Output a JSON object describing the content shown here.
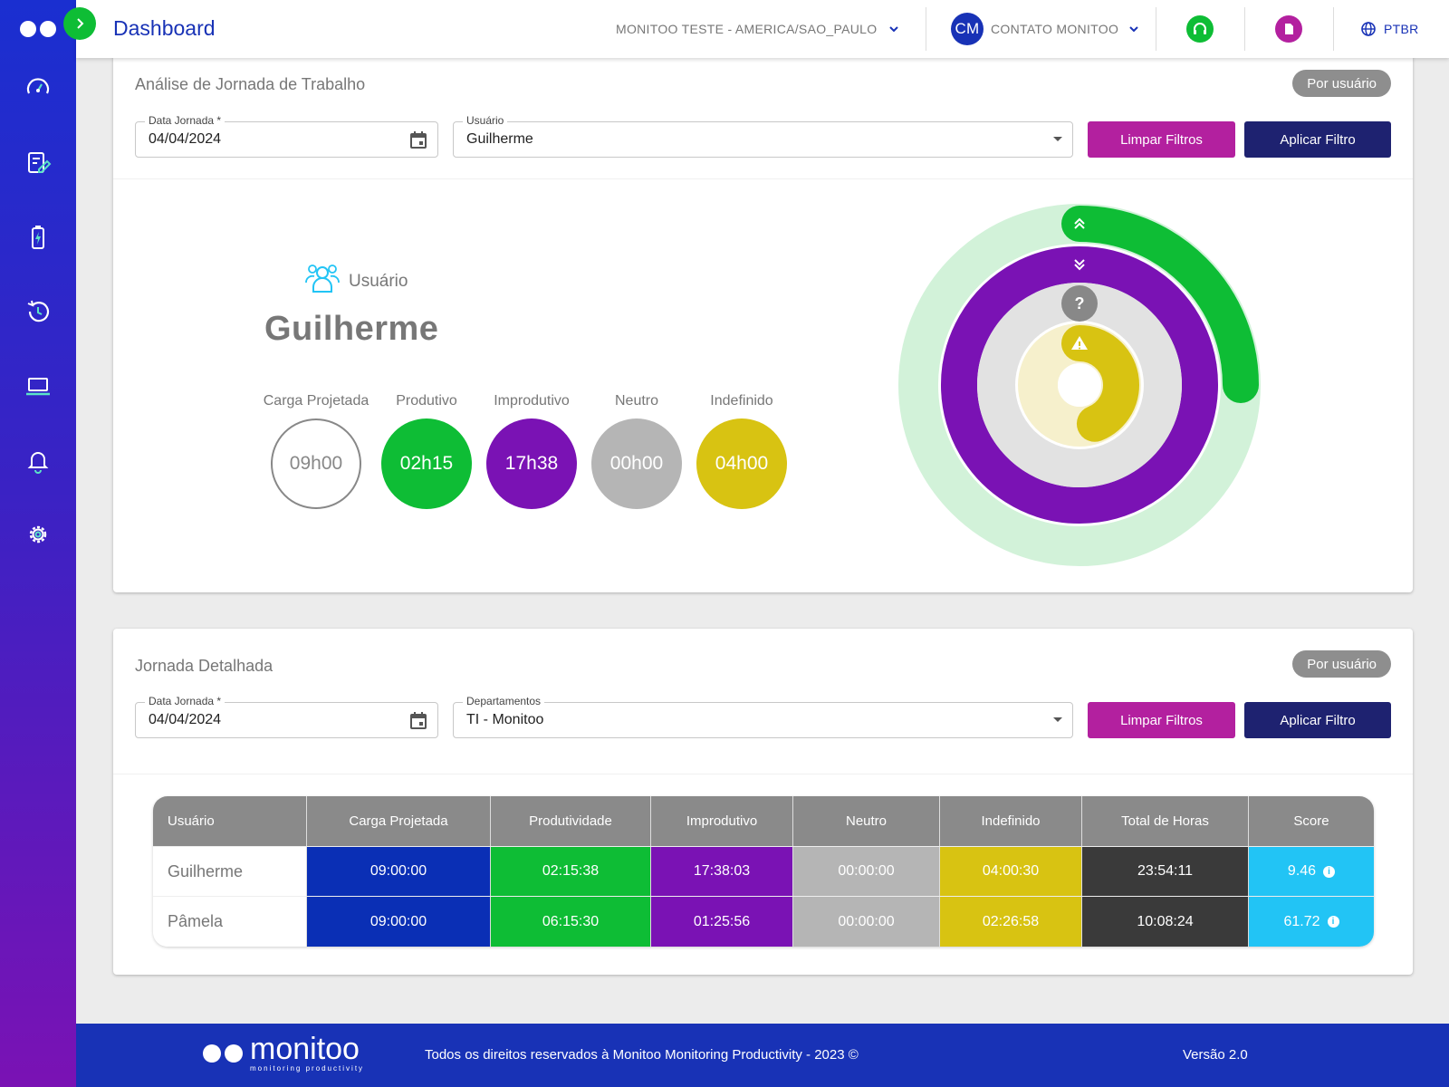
{
  "header": {
    "title": "Dashboard",
    "company": "MONITOO TESTE - AMERICA/SAO_PAULO",
    "avatar_initials": "CM",
    "account": "CONTATO MONITOO",
    "language": "PTBR"
  },
  "sidebar": {
    "items": [
      {
        "icon": "speedometer-icon"
      },
      {
        "icon": "report-edit-icon"
      },
      {
        "icon": "battery-charging-icon"
      },
      {
        "icon": "history-clock-icon"
      },
      {
        "icon": "laptop-icon"
      },
      {
        "icon": "bell-icon"
      },
      {
        "icon": "gear-icon"
      }
    ]
  },
  "analysis": {
    "title": "Análise de Jornada de Trabalho",
    "pill": "Por usuário",
    "date_label": "Data Jornada *",
    "date_value": "04/04/2024",
    "user_label": "Usuário",
    "user_value": "Guilherme",
    "clear_button": "Limpar Filtros",
    "apply_button": "Aplicar Filtro",
    "summary": {
      "heading": "Usuário",
      "name": "Guilherme",
      "metrics": [
        {
          "label": "Carga Projetada",
          "value": "09h00"
        },
        {
          "label": "Produtivo",
          "value": "02h15"
        },
        {
          "label": "Improdutivo",
          "value": "17h38"
        },
        {
          "label": "Neutro",
          "value": "00h00"
        },
        {
          "label": "Indefinido",
          "value": "04h00"
        }
      ]
    },
    "rings": {
      "produtivo_fraction": 0.25,
      "improdutivo_fraction": 1.0,
      "neutro_fraction": 0.0,
      "indefinido_fraction": 0.44
    }
  },
  "detail": {
    "title": "Jornada Detalhada",
    "pill": "Por usuário",
    "date_label": "Data Jornada *",
    "date_value": "04/04/2024",
    "dept_label": "Departamentos",
    "dept_value": "TI - Monitoo",
    "clear_button": "Limpar Filtros",
    "apply_button": "Aplicar Filtro",
    "table": {
      "headers": [
        "Usuário",
        "Carga Projetada",
        "Produtividade",
        "Improdutivo",
        "Neutro",
        "Indefinido",
        "Total de Horas",
        "Score"
      ],
      "rows": [
        [
          "Guilherme",
          "09:00:00",
          "02:15:38",
          "17:38:03",
          "00:00:00",
          "04:00:30",
          "23:54:11",
          "9.46"
        ],
        [
          "Pâmela",
          "09:00:00",
          "06:15:30",
          "01:25:56",
          "00:00:00",
          "02:26:58",
          "10:08:24",
          "61.72"
        ]
      ]
    }
  },
  "footer": {
    "brand": "monitoo",
    "tagline": "monitoring productivity",
    "copyright": "Todos os direitos reservados à Monitoo Monitoring Productivity - 2023 ©",
    "version": "Versão 2.0"
  },
  "colors": {
    "primary": "#1832b6",
    "produtivo": "#0ebd35",
    "improdutivo": "#7a12b4",
    "neutro": "#b5b5b5",
    "indefinido": "#d8c312",
    "carga": "#0a2fb5",
    "total": "#3a3a3a",
    "score": "#22c4f5",
    "clear_button": "#b3209f",
    "apply_button": "#1e2270"
  }
}
